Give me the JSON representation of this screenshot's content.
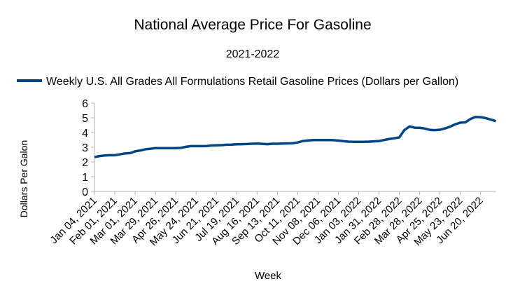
{
  "chart_data": {
    "type": "line",
    "title": "National Average Price For Gasoline",
    "subtitle": "2021-2022",
    "xlabel": "Week",
    "ylabel": "Dollars Per Galon",
    "categories": [
      "Jan 04, 2021",
      null,
      null,
      null,
      "Feb 01, 2021",
      null,
      null,
      null,
      "Mar 01, 2021",
      null,
      null,
      null,
      "Mar 29, 2021",
      null,
      null,
      null,
      "Apr 26, 2021",
      null,
      null,
      null,
      "May 24, 2021",
      null,
      null,
      null,
      "Jun 21, 2021",
      null,
      null,
      null,
      "Jul 19, 2021",
      null,
      null,
      null,
      "Aug 16, 2021",
      null,
      null,
      null,
      "Sep 13, 2021",
      null,
      null,
      null,
      "Oct 11, 2021",
      null,
      null,
      null,
      "Nov 08, 2021",
      null,
      null,
      null,
      "Dec 06, 2021",
      null,
      null,
      null,
      "Jan 03, 2022",
      null,
      null,
      null,
      "Jan 31, 2022",
      null,
      null,
      null,
      "Feb 28, 2022",
      null,
      null,
      null,
      "Mar 28, 2022",
      null,
      null,
      null,
      "Apr 25, 2022",
      null,
      null,
      null,
      "May 23, 2022",
      null,
      null,
      null,
      "Jun 20, 2022",
      null,
      null,
      null
    ],
    "series": [
      {
        "name": "Weekly U.S. All Grades All Formulations Retail Gasoline Prices  (Dollars per Gallon)",
        "color": "#004586",
        "values": [
          2.33,
          2.4,
          2.44,
          2.46,
          2.46,
          2.52,
          2.58,
          2.6,
          2.72,
          2.78,
          2.86,
          2.9,
          2.94,
          2.94,
          2.94,
          2.94,
          2.94,
          2.96,
          3.03,
          3.08,
          3.08,
          3.08,
          3.08,
          3.12,
          3.13,
          3.14,
          3.17,
          3.18,
          3.2,
          3.21,
          3.22,
          3.24,
          3.25,
          3.23,
          3.21,
          3.24,
          3.24,
          3.25,
          3.26,
          3.27,
          3.33,
          3.42,
          3.46,
          3.49,
          3.49,
          3.49,
          3.49,
          3.48,
          3.45,
          3.41,
          3.38,
          3.37,
          3.37,
          3.37,
          3.38,
          3.4,
          3.42,
          3.49,
          3.56,
          3.61,
          3.67,
          4.17,
          4.41,
          4.33,
          4.32,
          4.27,
          4.18,
          4.16,
          4.19,
          4.28,
          4.4,
          4.56,
          4.67,
          4.69,
          4.92,
          5.06,
          5.04,
          4.98,
          4.88,
          4.77
        ]
      }
    ],
    "ylim": [
      0,
      6
    ],
    "yticks": [
      0,
      1,
      2,
      3,
      4,
      5,
      6
    ],
    "legend": "top"
  }
}
